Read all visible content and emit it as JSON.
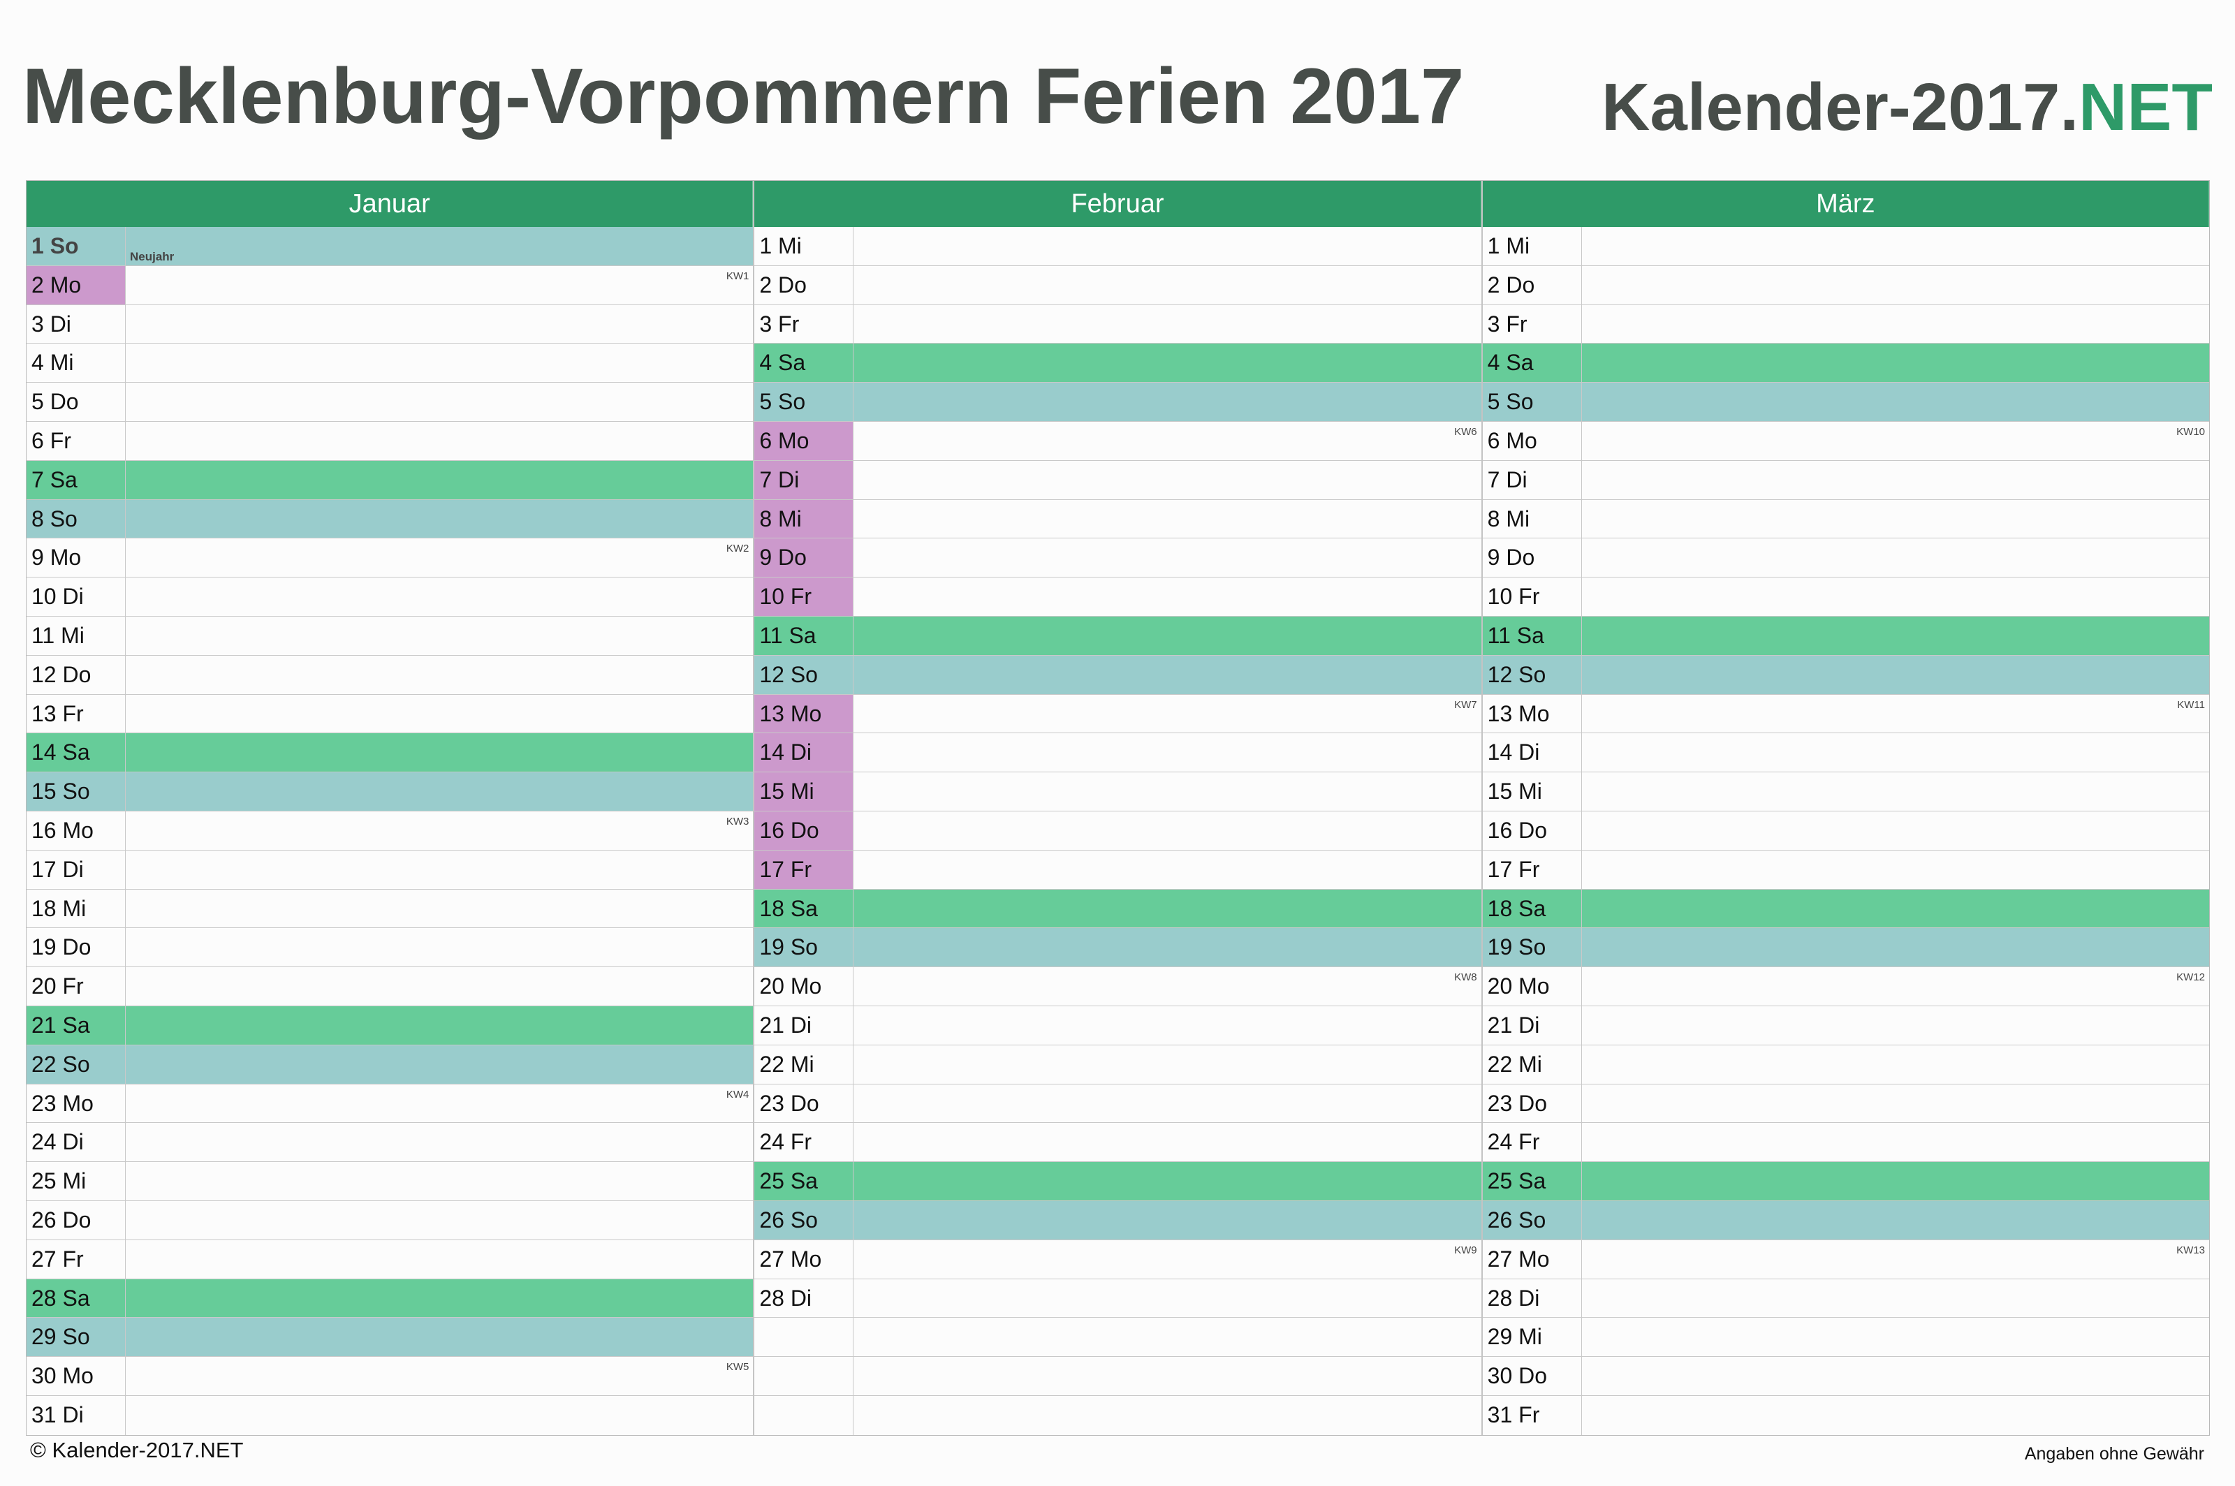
{
  "header": {
    "title": "Mecklenburg-Vorpommern Ferien 2017",
    "brand_main": "Kalender-2017.",
    "brand_accent": "NET"
  },
  "colors": {
    "accent": "#2e9a68",
    "saturday": "#66cc99",
    "sunday_holiday": "#99cccc",
    "school_vacation": "#cc99cc"
  },
  "months": [
    {
      "name": "Januar",
      "days": [
        {
          "label": "1 So",
          "type": "holiday",
          "note": "Neujahr"
        },
        {
          "label": "2 Mo",
          "type": "vacation",
          "kw": "KW1"
        },
        {
          "label": "3 Di"
        },
        {
          "label": "4 Mi"
        },
        {
          "label": "5 Do"
        },
        {
          "label": "6 Fr"
        },
        {
          "label": "7 Sa",
          "type": "sat"
        },
        {
          "label": "8 So",
          "type": "sun"
        },
        {
          "label": "9 Mo",
          "kw": "KW2"
        },
        {
          "label": "10 Di"
        },
        {
          "label": "11 Mi"
        },
        {
          "label": "12 Do"
        },
        {
          "label": "13 Fr"
        },
        {
          "label": "14 Sa",
          "type": "sat"
        },
        {
          "label": "15 So",
          "type": "sun"
        },
        {
          "label": "16 Mo",
          "kw": "KW3"
        },
        {
          "label": "17 Di"
        },
        {
          "label": "18 Mi"
        },
        {
          "label": "19 Do"
        },
        {
          "label": "20 Fr"
        },
        {
          "label": "21 Sa",
          "type": "sat"
        },
        {
          "label": "22 So",
          "type": "sun"
        },
        {
          "label": "23 Mo",
          "kw": "KW4"
        },
        {
          "label": "24 Di"
        },
        {
          "label": "25 Mi"
        },
        {
          "label": "26 Do"
        },
        {
          "label": "27 Fr"
        },
        {
          "label": "28 Sa",
          "type": "sat"
        },
        {
          "label": "29 So",
          "type": "sun"
        },
        {
          "label": "30 Mo",
          "kw": "KW5"
        },
        {
          "label": "31 Di"
        }
      ]
    },
    {
      "name": "Februar",
      "days": [
        {
          "label": "1 Mi"
        },
        {
          "label": "2 Do"
        },
        {
          "label": "3 Fr"
        },
        {
          "label": "4 Sa",
          "type": "sat"
        },
        {
          "label": "5 So",
          "type": "sun"
        },
        {
          "label": "6 Mo",
          "type": "vacation",
          "kw": "KW6"
        },
        {
          "label": "7 Di",
          "type": "vacation"
        },
        {
          "label": "8 Mi",
          "type": "vacation"
        },
        {
          "label": "9 Do",
          "type": "vacation"
        },
        {
          "label": "10 Fr",
          "type": "vacation"
        },
        {
          "label": "11 Sa",
          "type": "sat"
        },
        {
          "label": "12 So",
          "type": "sun"
        },
        {
          "label": "13 Mo",
          "type": "vacation",
          "kw": "KW7"
        },
        {
          "label": "14 Di",
          "type": "vacation"
        },
        {
          "label": "15 Mi",
          "type": "vacation"
        },
        {
          "label": "16 Do",
          "type": "vacation"
        },
        {
          "label": "17 Fr",
          "type": "vacation"
        },
        {
          "label": "18 Sa",
          "type": "sat"
        },
        {
          "label": "19 So",
          "type": "sun"
        },
        {
          "label": "20 Mo",
          "kw": "KW8"
        },
        {
          "label": "21 Di"
        },
        {
          "label": "22 Mi"
        },
        {
          "label": "23 Do"
        },
        {
          "label": "24 Fr"
        },
        {
          "label": "25 Sa",
          "type": "sat"
        },
        {
          "label": "26 So",
          "type": "sun"
        },
        {
          "label": "27 Mo",
          "kw": "KW9"
        },
        {
          "label": "28 Di"
        },
        {
          "label": ""
        },
        {
          "label": ""
        },
        {
          "label": ""
        }
      ]
    },
    {
      "name": "März",
      "days": [
        {
          "label": "1 Mi"
        },
        {
          "label": "2 Do"
        },
        {
          "label": "3 Fr"
        },
        {
          "label": "4 Sa",
          "type": "sat"
        },
        {
          "label": "5 So",
          "type": "sun"
        },
        {
          "label": "6 Mo",
          "kw": "KW10"
        },
        {
          "label": "7 Di"
        },
        {
          "label": "8 Mi"
        },
        {
          "label": "9 Do"
        },
        {
          "label": "10 Fr"
        },
        {
          "label": "11 Sa",
          "type": "sat"
        },
        {
          "label": "12 So",
          "type": "sun"
        },
        {
          "label": "13 Mo",
          "kw": "KW11"
        },
        {
          "label": "14 Di"
        },
        {
          "label": "15 Mi"
        },
        {
          "label": "16 Do"
        },
        {
          "label": "17 Fr"
        },
        {
          "label": "18 Sa",
          "type": "sat"
        },
        {
          "label": "19 So",
          "type": "sun"
        },
        {
          "label": "20 Mo",
          "kw": "KW12"
        },
        {
          "label": "21 Di"
        },
        {
          "label": "22 Mi"
        },
        {
          "label": "23 Do"
        },
        {
          "label": "24 Fr"
        },
        {
          "label": "25 Sa",
          "type": "sat"
        },
        {
          "label": "26 So",
          "type": "sun"
        },
        {
          "label": "27 Mo",
          "kw": "KW13"
        },
        {
          "label": "28 Di"
        },
        {
          "label": "29 Mi"
        },
        {
          "label": "30 Do"
        },
        {
          "label": "31 Fr"
        }
      ]
    }
  ],
  "footer": {
    "copyright": "© Kalender-2017.NET",
    "disclaimer": "Angaben ohne Gewähr"
  }
}
